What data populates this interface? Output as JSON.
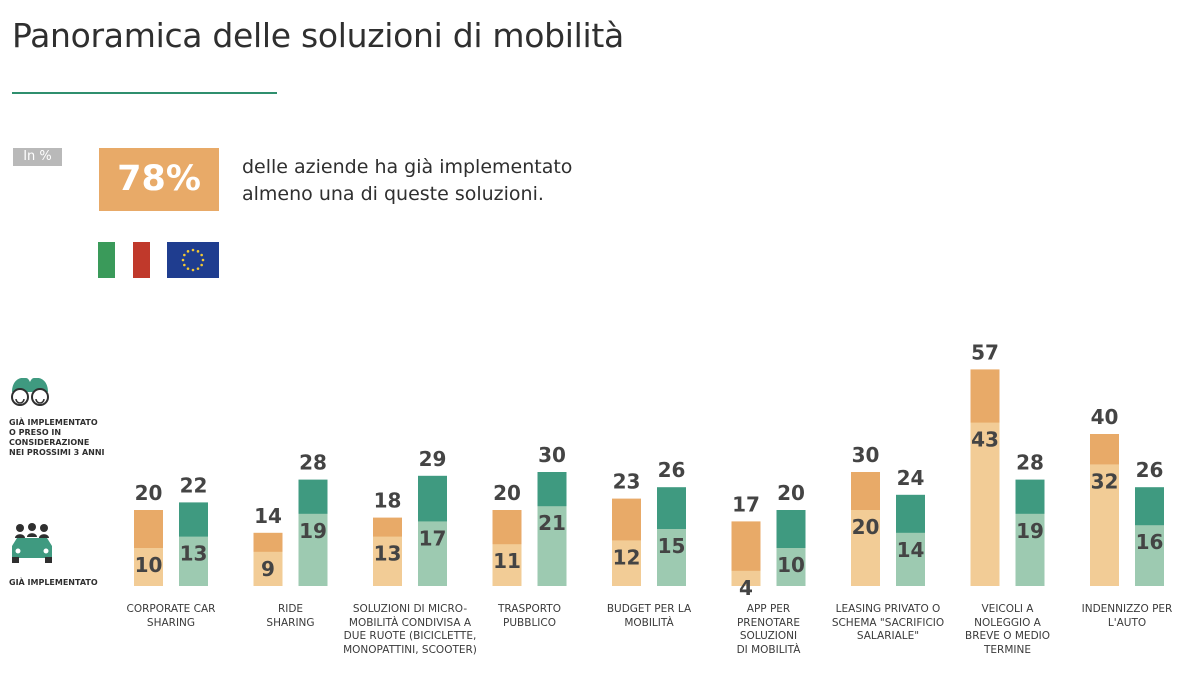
{
  "title": "Panoramica delle soluzioni di mobilità",
  "unit_badge": "In %",
  "highlight": {
    "value": "78%",
    "text": "delle aziende ha già implementato almeno una di queste soluzioni."
  },
  "legend": {
    "considered": "GIÀ IMPLEMENTATO O PRESO IN CONSIDERAZIONE NEI PROSSIMI 3 ANNI",
    "implemented": "GIÀ IMPLEMENTATO"
  },
  "colors": {
    "accent_green": "#2f8f6e",
    "it_total": "#e8aa68",
    "it_implemented": "#f2cc96",
    "eu_total": "#3f9a80",
    "eu_implemented": "#9dcab1",
    "value_text": "#444444",
    "flag_it_green": "#3a9a5a",
    "flag_it_white": "#ffffff",
    "flag_it_red": "#c0392b",
    "flag_eu_blue": "#1f3d8f",
    "flag_eu_star": "#f3c934"
  },
  "flags": [
    "italy-flag",
    "eu-flag"
  ],
  "chart_data": {
    "type": "bar",
    "stacked_overlay": true,
    "categories": [
      "CORPORATE CAR SHARING",
      "RIDE SHARING",
      "SOLUZIONI DI MICRO-MOBILITÀ CONDIVISA A DUE RUOTE (BICICLETTE, MONOPATTINI, SCOOTER)",
      "TRASPORTO PUBBLICO",
      "BUDGET PER LA MOBILITÀ",
      "APP PER PRENOTARE SOLUZIONI DI MOBILITÀ",
      "LEASING PRIVATO O SCHEMA \"SACRIFICIO SALARIALE\"",
      "VEICOLI A NOLEGGIO A BREVE O MEDIO TERMINE",
      "INDENNIZZO PER L'AUTO"
    ],
    "category_lines": [
      [
        "CORPORATE CAR",
        "SHARING"
      ],
      [
        "RIDE",
        "SHARING"
      ],
      [
        "SOLUZIONI DI MICRO-",
        "MOBILITÀ CONDIVISA A",
        "DUE RUOTE (BICICLETTE,",
        "MONOPATTINI, SCOOTER)"
      ],
      [
        "TRASPORTO",
        "PUBBLICO"
      ],
      [
        "BUDGET PER LA",
        "MOBILITÀ"
      ],
      [
        "APP PER",
        "PRENOTARE",
        "SOLUZIONI",
        "DI MOBILITÀ"
      ],
      [
        "LEASING PRIVATO O",
        "SCHEMA \"SACRIFICIO",
        "SALARIALE\""
      ],
      [
        "VEICOLI A",
        "NOLEGGIO A",
        "BREVE O MEDIO",
        "TERMINE"
      ],
      [
        "INDENNIZZO PER",
        "L'AUTO"
      ]
    ],
    "series": [
      {
        "flag": "italy-flag",
        "total": [
          20,
          14,
          18,
          20,
          23,
          17,
          30,
          57,
          40
        ],
        "implemented": [
          10,
          9,
          13,
          11,
          12,
          4,
          20,
          43,
          32
        ]
      },
      {
        "flag": "eu-flag",
        "total": [
          22,
          28,
          29,
          30,
          26,
          20,
          24,
          28,
          26
        ],
        "implemented": [
          13,
          19,
          17,
          21,
          15,
          10,
          14,
          19,
          16
        ]
      }
    ],
    "ylim": [
      0,
      57
    ],
    "grid": false
  }
}
